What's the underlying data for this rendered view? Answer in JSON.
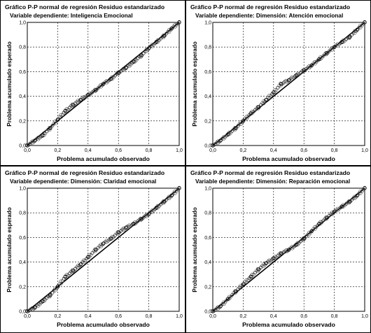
{
  "chart_data": [
    {
      "type": "scatter",
      "title": "Gráfico P-P normal de regresión Residuo estandarizado",
      "subtitle": "Variable dependiente: Inteligencia Emocional",
      "xlabel": "Problema acumulado observado",
      "ylabel": "Problema acumulado esperado",
      "xlim": [
        0,
        1
      ],
      "ylim": [
        0,
        1
      ],
      "xticks": [
        "0,0",
        "0,2",
        "0,4",
        "0,6",
        "0,8",
        "1,0"
      ],
      "yticks": [
        "0,0",
        "0,2",
        "0,4",
        "0,6",
        "0,8",
        "1,0"
      ],
      "grid": true,
      "reference_line": [
        [
          0,
          0
        ],
        [
          1,
          1
        ]
      ],
      "x": [
        0.0,
        0.05,
        0.1,
        0.15,
        0.2,
        0.25,
        0.3,
        0.35,
        0.4,
        0.45,
        0.5,
        0.55,
        0.6,
        0.65,
        0.7,
        0.75,
        0.8,
        0.85,
        0.9,
        0.95,
        1.0
      ],
      "y": [
        0.0,
        0.04,
        0.08,
        0.14,
        0.21,
        0.28,
        0.33,
        0.37,
        0.41,
        0.45,
        0.5,
        0.54,
        0.59,
        0.63,
        0.68,
        0.73,
        0.79,
        0.84,
        0.89,
        0.95,
        1.0
      ]
    },
    {
      "type": "scatter",
      "title": "Gráfico P-P normal de regresión Residuo estandarizado",
      "subtitle": "Variable dependiente: Dimensión: Atención emocional",
      "xlabel": "Problema acumulado observado",
      "ylabel": "Problema acumulado esperado",
      "xlim": [
        0,
        1
      ],
      "ylim": [
        0,
        1
      ],
      "xticks": [
        "0,0",
        "0,2",
        "0,4",
        "0,6",
        "0,8",
        "1,0"
      ],
      "yticks": [
        "0,0",
        "0,2",
        "0,4",
        "0,6",
        "0,8",
        "1,0"
      ],
      "grid": true,
      "reference_line": [
        [
          0,
          0
        ],
        [
          1,
          1
        ]
      ],
      "x": [
        0.0,
        0.05,
        0.1,
        0.15,
        0.2,
        0.25,
        0.3,
        0.35,
        0.4,
        0.45,
        0.5,
        0.55,
        0.6,
        0.65,
        0.7,
        0.75,
        0.8,
        0.85,
        0.9,
        0.95,
        1.0
      ],
      "y": [
        0.0,
        0.04,
        0.09,
        0.14,
        0.2,
        0.26,
        0.31,
        0.37,
        0.43,
        0.5,
        0.53,
        0.57,
        0.61,
        0.65,
        0.7,
        0.75,
        0.8,
        0.84,
        0.88,
        0.94,
        1.0
      ]
    },
    {
      "type": "scatter",
      "title": "Gráfico P-P normal de regresión Residuo estandarizado",
      "subtitle": "Variable dependiente: Dimensión: Claridad emocional",
      "xlabel": "Problema acumulado observado",
      "ylabel": "Problema acumulado esperado",
      "xlim": [
        0,
        1
      ],
      "ylim": [
        0,
        1
      ],
      "xticks": [
        "0,0",
        "0,2",
        "0,4",
        "0,6",
        "0,8",
        "1,0"
      ],
      "yticks": [
        "0,0",
        "0,2",
        "0,4",
        "0,6",
        "0,8",
        "1,0"
      ],
      "grid": true,
      "reference_line": [
        [
          0,
          0
        ],
        [
          1,
          1
        ]
      ],
      "x": [
        0.0,
        0.05,
        0.1,
        0.15,
        0.2,
        0.25,
        0.3,
        0.35,
        0.4,
        0.45,
        0.5,
        0.55,
        0.6,
        0.65,
        0.7,
        0.75,
        0.8,
        0.85,
        0.9,
        0.95,
        1.0
      ],
      "y": [
        0.0,
        0.03,
        0.08,
        0.13,
        0.2,
        0.28,
        0.33,
        0.38,
        0.44,
        0.5,
        0.55,
        0.59,
        0.64,
        0.68,
        0.71,
        0.75,
        0.79,
        0.84,
        0.89,
        0.94,
        1.0
      ]
    },
    {
      "type": "scatter",
      "title": "Gráfico P-P normal de regresión Residuo estandarizado",
      "subtitle": "Variable dependiente: Dimensión: Reparación emocional",
      "xlabel": "Problema acumulado observado",
      "ylabel": "Problema acumulado esperado",
      "xlim": [
        0,
        1
      ],
      "ylim": [
        0,
        1
      ],
      "xticks": [
        "0,0",
        "0,2",
        "0,4",
        "0,6",
        "0,8",
        "1,0"
      ],
      "yticks": [
        "0,0",
        "0,2",
        "0,4",
        "0,6",
        "0,8",
        "1,0"
      ],
      "grid": true,
      "reference_line": [
        [
          0,
          0
        ],
        [
          1,
          1
        ]
      ],
      "x": [
        0.0,
        0.05,
        0.1,
        0.15,
        0.2,
        0.25,
        0.3,
        0.35,
        0.4,
        0.45,
        0.5,
        0.55,
        0.6,
        0.65,
        0.7,
        0.75,
        0.8,
        0.85,
        0.9,
        0.95,
        1.0
      ],
      "y": [
        0.0,
        0.04,
        0.1,
        0.16,
        0.22,
        0.28,
        0.34,
        0.39,
        0.43,
        0.47,
        0.5,
        0.54,
        0.59,
        0.65,
        0.71,
        0.76,
        0.81,
        0.85,
        0.89,
        0.94,
        1.0
      ]
    }
  ]
}
